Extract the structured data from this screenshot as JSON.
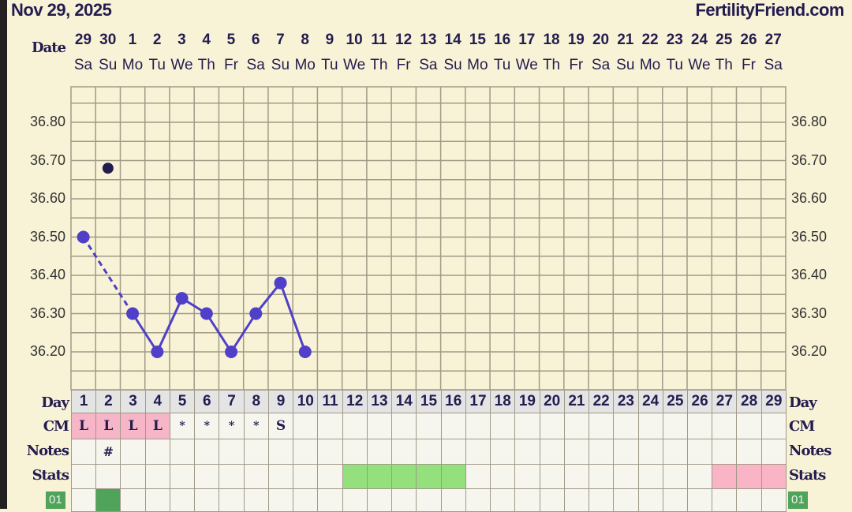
{
  "header": {
    "date": "Nov 29, 2025",
    "brand": "FertilityFriend.com"
  },
  "labels": {
    "date": "Date",
    "day": "Day",
    "cm": "CM",
    "notes": "Notes",
    "stats": "Stats",
    "badge": "01"
  },
  "dates": [
    "29",
    "30",
    "1",
    "2",
    "3",
    "4",
    "5",
    "6",
    "7",
    "8",
    "9",
    "10",
    "11",
    "12",
    "13",
    "14",
    "15",
    "16",
    "17",
    "18",
    "19",
    "20",
    "21",
    "22",
    "23",
    "24",
    "25",
    "26",
    "27"
  ],
  "weekdays": [
    "Sa",
    "Su",
    "Mo",
    "Tu",
    "We",
    "Th",
    "Fr",
    "Sa",
    "Su",
    "Mo",
    "Tu",
    "We",
    "Th",
    "Fr",
    "Sa",
    "Su",
    "Mo",
    "Tu",
    "We",
    "Th",
    "Fr",
    "Sa",
    "Su",
    "Mo",
    "Tu",
    "We",
    "Th",
    "Fr",
    "Sa"
  ],
  "cycle_days": [
    "1",
    "2",
    "3",
    "4",
    "5",
    "6",
    "7",
    "8",
    "9",
    "10",
    "11",
    "12",
    "13",
    "14",
    "15",
    "16",
    "17",
    "18",
    "19",
    "20",
    "21",
    "22",
    "23",
    "24",
    "25",
    "26",
    "27",
    "28",
    "29"
  ],
  "cm": [
    "L",
    "L",
    "L",
    "L",
    "*",
    "*",
    "*",
    "*",
    "S",
    "",
    "",
    "",
    "",
    "",
    "",
    "",
    "",
    "",
    "",
    "",
    "",
    "",
    "",
    "",
    "",
    "",
    "",
    "",
    ""
  ],
  "notes": [
    "",
    "#",
    "",
    "",
    "",
    "",
    "",
    "",
    "",
    "",
    "",
    "",
    "",
    "",
    "",
    "",
    "",
    "",
    "",
    "",
    "",
    "",
    "",
    "",
    "",
    "",
    "",
    "",
    ""
  ],
  "stats_highlight": {
    "green_days": [
      12,
      13,
      14,
      15,
      16
    ],
    "pink_days": [
      27,
      28,
      29
    ]
  },
  "badge_row_highlight_days": [
    2
  ],
  "colors": {
    "line": "#4f3fc9",
    "outlier": "#231c4f",
    "cm_pink": "#f7b5c8",
    "stats_green": "#93e07c",
    "stats_pink": "#f9b4c6",
    "badge_green": "#4fa35a"
  },
  "chart_data": {
    "type": "line",
    "y_ticks": [
      "36.80",
      "36.70",
      "36.60",
      "36.50",
      "36.40",
      "36.30",
      "36.20"
    ],
    "ylim": [
      36.1,
      36.89
    ],
    "grid": true,
    "points": [
      {
        "day": 1,
        "temp": 36.5
      },
      {
        "day": 2,
        "temp": 36.68,
        "discarded": true
      },
      {
        "day": 3,
        "temp": 36.3
      },
      {
        "day": 4,
        "temp": 36.2
      },
      {
        "day": 5,
        "temp": 36.34
      },
      {
        "day": 6,
        "temp": 36.3
      },
      {
        "day": 7,
        "temp": 36.2
      },
      {
        "day": 8,
        "temp": 36.3
      },
      {
        "day": 9,
        "temp": 36.38
      },
      {
        "day": 10,
        "temp": 36.2
      }
    ],
    "dashed_segment": [
      1,
      3
    ]
  }
}
